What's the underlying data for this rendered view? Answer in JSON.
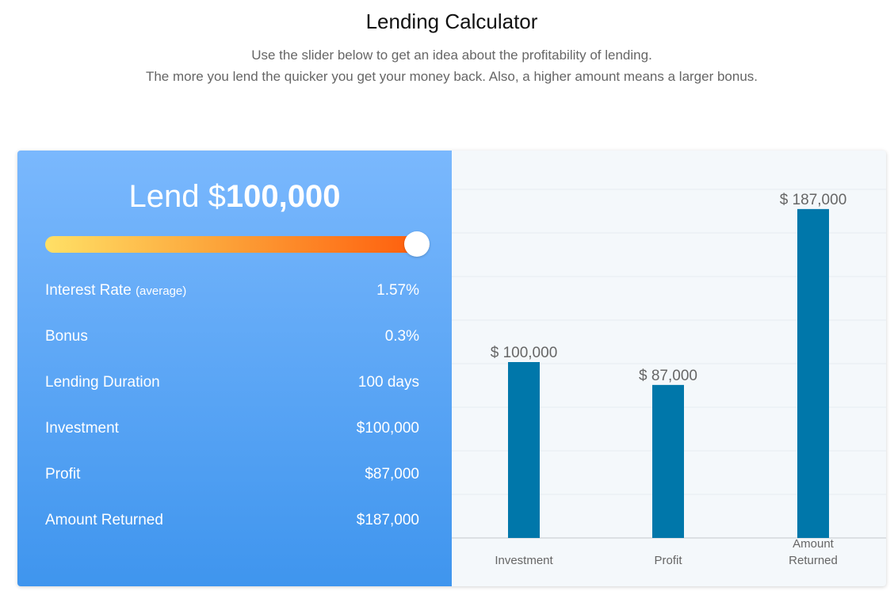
{
  "header": {
    "title": "Lending Calculator",
    "subtitle_line1": "Use the slider below to get an idea about the profitability of lending.",
    "subtitle_line2": "The more you lend the quicker you get your money back. Also, a higher amount means a larger bonus."
  },
  "calculator": {
    "lend_prefix": "Lend $",
    "lend_amount": "100,000",
    "slider_level": 1.0,
    "rows": [
      {
        "label": "Interest Rate",
        "note": "(average)",
        "value": "1.57%"
      },
      {
        "label": "Bonus",
        "note": "",
        "value": "0.3%"
      },
      {
        "label": "Lending Duration",
        "note": "",
        "value": "100 days"
      },
      {
        "label": "Investment",
        "note": "",
        "value": "$100,000"
      },
      {
        "label": "Profit",
        "note": "",
        "value": "$87,000"
      },
      {
        "label": "Amount Returned",
        "note": "",
        "value": "$187,000"
      }
    ]
  },
  "colors": {
    "bar": "#0077aa",
    "panel_top": "#7ab8fd",
    "panel_bottom": "#3f95ee",
    "slider_start": "#ffe066",
    "slider_end": "#ff5a0a"
  },
  "chart_data": {
    "type": "bar",
    "categories": [
      "Investment",
      "Profit",
      "Amount Returned"
    ],
    "values": [
      100000,
      87000,
      187000
    ],
    "data_labels": [
      "$ 100,000",
      "$ 87,000",
      "$ 187,000"
    ],
    "ylim": [
      0,
      200000
    ],
    "grid": true,
    "title": "",
    "xlabel": "",
    "ylabel": ""
  }
}
